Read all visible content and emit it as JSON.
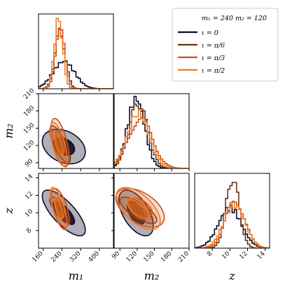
{
  "chart_data": {
    "type": "corner",
    "legend": {
      "placement": "top-right",
      "header": "m₁ = 240 m₂ = 120",
      "entries": [
        "ι = 0",
        "ι = π/6",
        "ι = π/3",
        "ι = π/2"
      ]
    },
    "colors": [
      "#0d0b2a",
      "#6b3312",
      "#c9521c",
      "#f07a24"
    ],
    "parameters": [
      {
        "key": "m1",
        "label": "m₁",
        "range": [
          140,
          460
        ],
        "ticks": [
          160,
          240,
          320,
          400
        ]
      },
      {
        "key": "m2",
        "label": "m₂",
        "range": [
          80,
          210
        ],
        "ticks": [
          90,
          120,
          150,
          180,
          210
        ]
      },
      {
        "key": "z",
        "label": "z",
        "range": [
          6,
          14.5
        ],
        "ticks": [
          8,
          10,
          12,
          14
        ]
      }
    ],
    "series": [
      {
        "name": "ι = 0",
        "m1": {
          "mean": 248,
          "sd": 46
        },
        "m2": {
          "mean": 118,
          "sd": 15
        },
        "z": {
          "mean": 10.0,
          "sd": 1.3
        },
        "corr": {
          "m1_m2": -0.3,
          "m1_z": -0.75,
          "m2_z": -0.55
        }
      },
      {
        "name": "ι = π/6",
        "m1": {
          "mean": 232,
          "sd": 22
        },
        "m2": {
          "mean": 122,
          "sd": 16
        },
        "z": {
          "mean": 10.3,
          "sd": 0.75
        },
        "corr": {
          "m1_m2": -0.75,
          "m1_z": -0.8,
          "m2_z": -0.75
        }
      },
      {
        "name": "ι = π/3",
        "m1": {
          "mean": 232,
          "sd": 19
        },
        "m2": {
          "mean": 125,
          "sd": 21
        },
        "z": {
          "mean": 10.6,
          "sd": 1.1
        },
        "corr": {
          "m1_m2": -0.6,
          "m1_z": -0.6,
          "m2_z": -0.5
        }
      },
      {
        "name": "ι = π/2",
        "m1": {
          "mean": 226,
          "sd": 18
        },
        "m2": {
          "mean": 122,
          "sd": 19
        },
        "z": {
          "mean": 10.5,
          "sd": 1.2
        },
        "corr": {
          "m1_m2": -0.65,
          "m1_z": -0.7,
          "m2_z": -0.6
        }
      }
    ]
  }
}
